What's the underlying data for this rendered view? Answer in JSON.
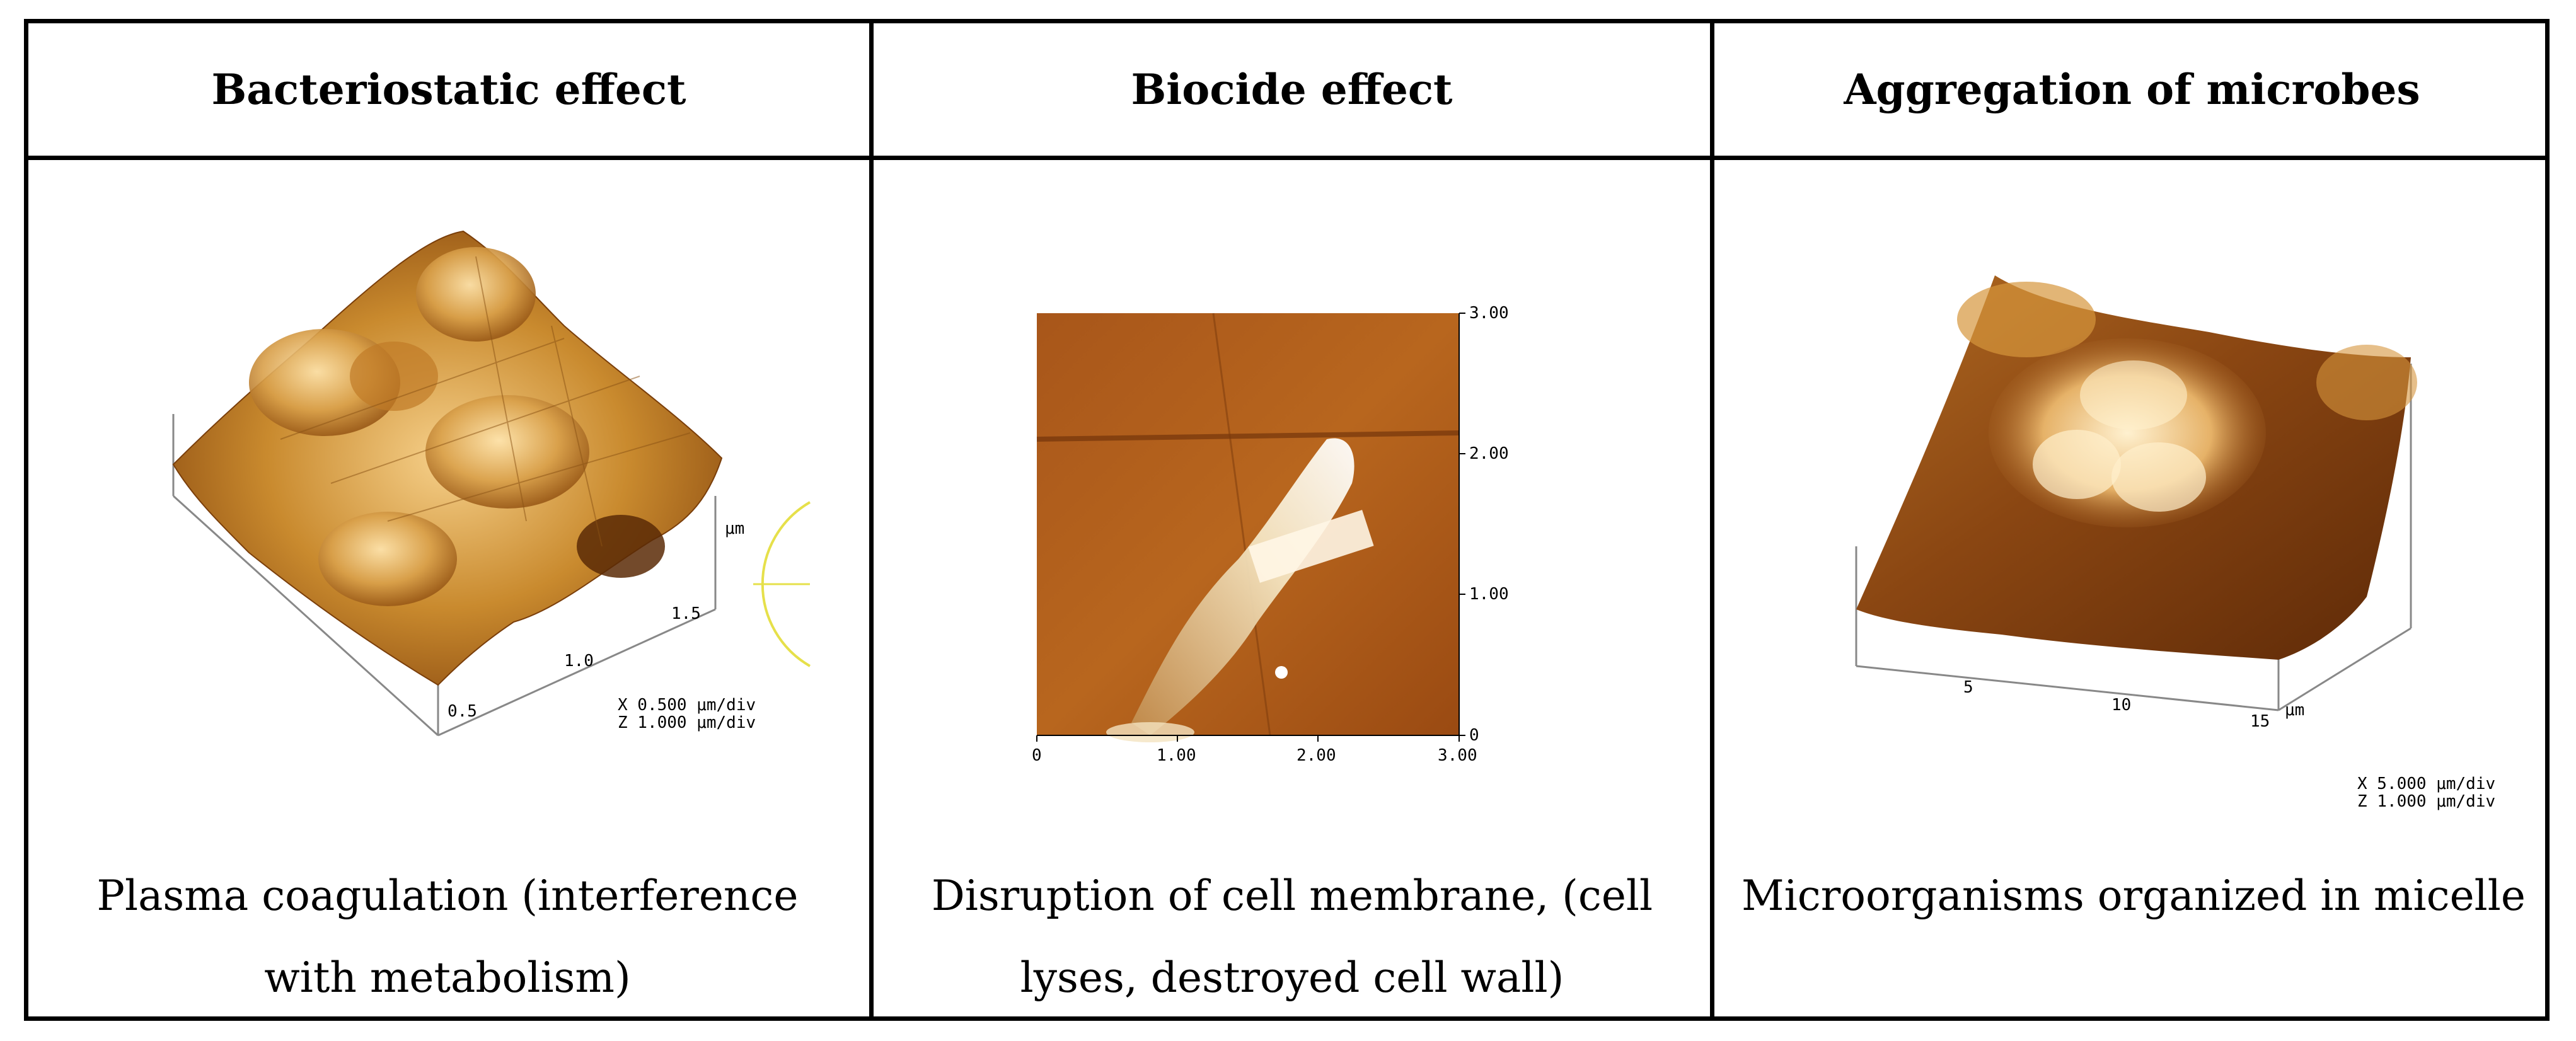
{
  "table": {
    "headers": [
      "Bacteriostatic effect",
      "Biocide effect",
      "Aggregation of microbes"
    ],
    "captions": [
      "Plasma coagulation (interference with metabolism)",
      "Disruption of cell membrane, (cell lyses, destroyed cell wall)",
      "Microorganisms organized in micelle"
    ]
  },
  "images": {
    "afm1": {
      "axis_ticks": [
        "0.5",
        "1.0",
        "1.5"
      ],
      "unit": "μm",
      "scale_x": "X  0.500 μm/div",
      "scale_z": "Z  1.000 μm/div"
    },
    "afm2": {
      "x_ticks": [
        "0",
        "1.00",
        "2.00",
        "3.00"
      ],
      "y_ticks": [
        "0",
        "1.00",
        "2.00",
        "3.00"
      ]
    },
    "afm3": {
      "axis_ticks": [
        "5",
        "10",
        "15"
      ],
      "unit": "μm",
      "scale_x": "X  5.000 μm/div",
      "scale_z": "Z  1.000 μm/div"
    }
  }
}
